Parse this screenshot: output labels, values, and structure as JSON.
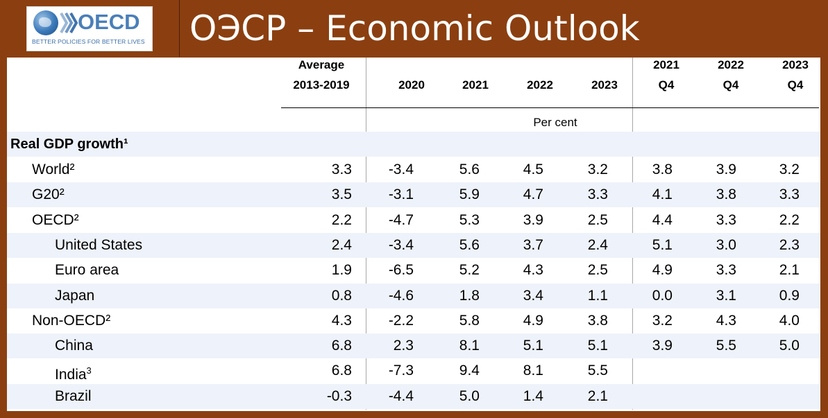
{
  "header": {
    "logo_word": "OECD",
    "logo_tagline": "BETTER POLICIES FOR BETTER LIVES",
    "title": "ОЭСР – Economic Outlook"
  },
  "table": {
    "columns": [
      {
        "line1": "Average",
        "line2": "2013-2019"
      },
      {
        "line1": "",
        "line2": "2020"
      },
      {
        "line1": "",
        "line2": "2021"
      },
      {
        "line1": "",
        "line2": "2022"
      },
      {
        "line1": "",
        "line2": "2023"
      },
      {
        "line1": "2021",
        "line2": "Q4"
      },
      {
        "line1": "2022",
        "line2": "Q4"
      },
      {
        "line1": "2023",
        "line2": "Q4"
      }
    ],
    "unit_label": "Per cent",
    "section_label": "Real GDP growth¹",
    "rows": [
      {
        "label": "World²",
        "values": [
          "3.3",
          "-3.4",
          "5.6",
          "4.5",
          "3.2",
          "3.8",
          "3.9",
          "3.2"
        ]
      },
      {
        "label": "G20²",
        "values": [
          "3.5",
          "-3.1",
          "5.9",
          "4.7",
          "3.3",
          "4.1",
          "3.8",
          "3.3"
        ]
      },
      {
        "label": "OECD²",
        "values": [
          "2.2",
          "-4.7",
          "5.3",
          "3.9",
          "2.5",
          "4.4",
          "3.3",
          "2.2"
        ]
      },
      {
        "label": "United States",
        "values": [
          "2.4",
          "-3.4",
          "5.6",
          "3.7",
          "2.4",
          "5.1",
          "3.0",
          "2.3"
        ]
      },
      {
        "label": "Euro area",
        "values": [
          "1.9",
          "-6.5",
          "5.2",
          "4.3",
          "2.5",
          "4.9",
          "3.3",
          "2.1"
        ]
      },
      {
        "label": "Japan",
        "values": [
          "0.8",
          "-4.6",
          "1.8",
          "3.4",
          "1.1",
          "0.0",
          "3.1",
          "0.9"
        ]
      },
      {
        "label": "Non-OECD²",
        "values": [
          "4.3",
          "-2.2",
          "5.8",
          "4.9",
          "3.8",
          "3.2",
          "4.3",
          "4.0"
        ]
      },
      {
        "label": "China",
        "values": [
          "6.8",
          "2.3",
          "8.1",
          "5.1",
          "5.1",
          "3.9",
          "5.5",
          "5.0"
        ]
      },
      {
        "label": "India",
        "label_sup": "3",
        "values": [
          "6.8",
          "-7.3",
          "9.4",
          "8.1",
          "5.5",
          "",
          "",
          ""
        ]
      },
      {
        "label": "Brazil",
        "values": [
          "-0.3",
          "-4.4",
          "5.0",
          "1.4",
          "2.1",
          "",
          "",
          ""
        ]
      }
    ]
  },
  "colors": {
    "frame": "#8b3f10",
    "row_shade": "#eef2fa",
    "logo_blue": "#4a7fb8"
  }
}
